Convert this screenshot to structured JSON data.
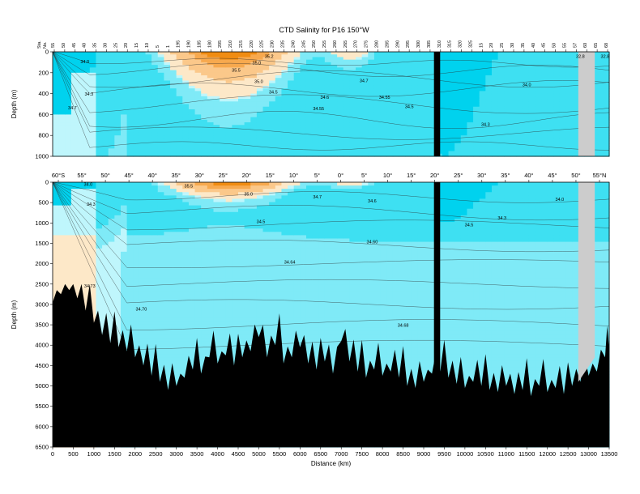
{
  "colors": {
    "s_lt_346": "#00d2ee",
    "s_346": "#3ee0f2",
    "s_347": "#7feaf7",
    "s_348": "#bff6fc",
    "s_349": "#fde8c8",
    "s_350": "#fbc88a",
    "s_352": "#f7a94e",
    "s_356": "#f08c12",
    "bathymetry": "#000000",
    "missing": "#cccccc"
  },
  "chart_data": [
    {
      "type": "heatmap",
      "panel": "top",
      "title": "CTD Salinity for P16 150°W",
      "xlabel": "",
      "ylabel": "Depth (m)",
      "ylim": [
        1000,
        0
      ],
      "yticks": [
        "0",
        "200",
        "400",
        "600",
        "800",
        "1000"
      ],
      "xlim": [
        0,
        13500
      ],
      "station_axis_label": [
        "Sta.",
        "No."
      ],
      "station_labels": [
        "55",
        "50",
        "45",
        "40",
        "35",
        "30",
        "25",
        "20",
        "15",
        "10",
        "5",
        "1",
        "195",
        "190",
        "185",
        "180",
        "205",
        "210",
        "215",
        "220",
        "225",
        "230",
        "235",
        "240",
        "245",
        "250",
        "255",
        "260",
        "265",
        "270",
        "275",
        "280",
        "285",
        "290",
        "295",
        "300",
        "305",
        "310",
        "315",
        "320",
        "325",
        "15",
        "20",
        "25",
        "30",
        "35",
        "40",
        "45",
        "50",
        "55",
        "57",
        "60",
        "65",
        "68"
      ],
      "contour_labels": [
        {
          "text": "34.0",
          "x": 780,
          "y": 110
        },
        {
          "text": "34.3",
          "x": 880,
          "y": 420
        },
        {
          "text": "34.7",
          "x": 480,
          "y": 550
        },
        {
          "text": "35.2",
          "x": 5250,
          "y": 60
        },
        {
          "text": "35.0",
          "x": 4950,
          "y": 120
        },
        {
          "text": "35.5",
          "x": 4450,
          "y": 190
        },
        {
          "text": "35.0",
          "x": 5000,
          "y": 300
        },
        {
          "text": "34.5",
          "x": 5350,
          "y": 400
        },
        {
          "text": "34.6",
          "x": 6600,
          "y": 450
        },
        {
          "text": "34.55",
          "x": 6450,
          "y": 560
        },
        {
          "text": "34.7",
          "x": 7550,
          "y": 290
        },
        {
          "text": "34.55",
          "x": 8050,
          "y": 450
        },
        {
          "text": "34.5",
          "x": 8650,
          "y": 540
        },
        {
          "text": "34.3",
          "x": 10500,
          "y": 710
        },
        {
          "text": "34.0",
          "x": 11500,
          "y": 330
        },
        {
          "text": "32.8",
          "x": 12800,
          "y": 60
        },
        {
          "text": "32.8",
          "x": 13400,
          "y": 60
        }
      ],
      "missing_range_km": [
        12750,
        13150
      ],
      "bathymetry_range_km": [
        9250,
        9400
      ]
    },
    {
      "type": "heatmap",
      "panel": "bottom",
      "title": "",
      "xlabel": "Distance (km)",
      "ylabel": "Depth (m)",
      "ylim": [
        6500,
        0
      ],
      "yticks": [
        "0",
        "500",
        "1000",
        "1500",
        "2000",
        "2500",
        "3000",
        "3500",
        "4000",
        "4500",
        "5000",
        "5500",
        "6000",
        "6500"
      ],
      "xlim": [
        0,
        13500
      ],
      "xticks": [
        "0",
        "500",
        "1000",
        "1500",
        "2000",
        "2500",
        "3000",
        "3500",
        "4000",
        "4500",
        "5000",
        "5500",
        "6000",
        "6500",
        "7000",
        "7500",
        "8000",
        "8500",
        "9000",
        "9500",
        "10000",
        "10500",
        "11000",
        "11500",
        "12000",
        "12500",
        "13000",
        "13500"
      ],
      "lat_labels": [
        "60°S",
        "55°",
        "50°",
        "45°",
        "40°",
        "35°",
        "30°",
        "25°",
        "20°",
        "15°",
        "10°",
        "5°",
        "0°",
        "5°",
        "10°",
        "15°",
        "20°",
        "25°",
        "30°",
        "35°",
        "40°",
        "45°",
        "50°",
        "55°N"
      ],
      "contour_labels": [
        {
          "text": "34.0",
          "x": 860,
          "y": 90
        },
        {
          "text": "34.3",
          "x": 930,
          "y": 580
        },
        {
          "text": "34.73",
          "x": 900,
          "y": 2580
        },
        {
          "text": "34.70",
          "x": 2150,
          "y": 3150
        },
        {
          "text": "35.5",
          "x": 3300,
          "y": 130
        },
        {
          "text": "35.0",
          "x": 4750,
          "y": 330
        },
        {
          "text": "34.7",
          "x": 6420,
          "y": 400
        },
        {
          "text": "34.6",
          "x": 7750,
          "y": 500
        },
        {
          "text": "34.5",
          "x": 5050,
          "y": 1000
        },
        {
          "text": "34.60",
          "x": 7750,
          "y": 1500
        },
        {
          "text": "34.64",
          "x": 5750,
          "y": 2000
        },
        {
          "text": "34.68",
          "x": 8500,
          "y": 3550
        },
        {
          "text": "34.5",
          "x": 10100,
          "y": 1080
        },
        {
          "text": "34.3",
          "x": 10900,
          "y": 910
        },
        {
          "text": "34.0",
          "x": 12300,
          "y": 460
        }
      ],
      "missing_range_km": [
        12750,
        13150
      ],
      "bathymetry_depth_m": [
        [
          0,
          2950
        ],
        [
          200,
          2750
        ],
        [
          400,
          2650
        ],
        [
          600,
          2850
        ],
        [
          800,
          3150
        ],
        [
          1000,
          3450
        ],
        [
          1200,
          3750
        ],
        [
          1400,
          3950
        ],
        [
          1600,
          4050
        ],
        [
          1800,
          4150
        ],
        [
          2000,
          4300
        ],
        [
          2200,
          4500
        ],
        [
          2400,
          4750
        ],
        [
          2600,
          4900
        ],
        [
          2800,
          5100
        ],
        [
          3000,
          5000
        ],
        [
          3200,
          4800
        ],
        [
          3400,
          4600
        ],
        [
          3600,
          4700
        ],
        [
          3800,
          4300
        ],
        [
          4000,
          4450
        ],
        [
          4200,
          4250
        ],
        [
          4400,
          4500
        ],
        [
          4600,
          4300
        ],
        [
          4800,
          4150
        ],
        [
          5000,
          3800
        ],
        [
          5200,
          4300
        ],
        [
          5400,
          4000
        ],
        [
          5600,
          4450
        ],
        [
          5800,
          4300
        ],
        [
          6000,
          4050
        ],
        [
          6200,
          4450
        ],
        [
          6400,
          4600
        ],
        [
          6600,
          4400
        ],
        [
          6800,
          4700
        ],
        [
          7000,
          3900
        ],
        [
          7200,
          4400
        ],
        [
          7400,
          4650
        ],
        [
          7600,
          4800
        ],
        [
          7800,
          4600
        ],
        [
          8000,
          4750
        ],
        [
          8200,
          4650
        ],
        [
          8400,
          4800
        ],
        [
          8600,
          5000
        ],
        [
          8800,
          5050
        ],
        [
          9000,
          4900
        ],
        [
          9200,
          4700
        ],
        [
          9400,
          4650
        ],
        [
          9600,
          4800
        ],
        [
          9800,
          4950
        ],
        [
          10000,
          5050
        ],
        [
          10200,
          4900
        ],
        [
          10400,
          5000
        ],
        [
          10600,
          5100
        ],
        [
          10800,
          5150
        ],
        [
          11000,
          5000
        ],
        [
          11200,
          5200
        ],
        [
          11400,
          5100
        ],
        [
          11600,
          5250
        ],
        [
          11800,
          5000
        ],
        [
          12000,
          5150
        ],
        [
          12200,
          5050
        ],
        [
          12400,
          5200
        ],
        [
          12600,
          5000
        ],
        [
          12800,
          4900
        ],
        [
          13000,
          4750
        ],
        [
          13200,
          4650
        ],
        [
          13400,
          4300
        ],
        [
          13500,
          4100
        ]
      ]
    }
  ]
}
